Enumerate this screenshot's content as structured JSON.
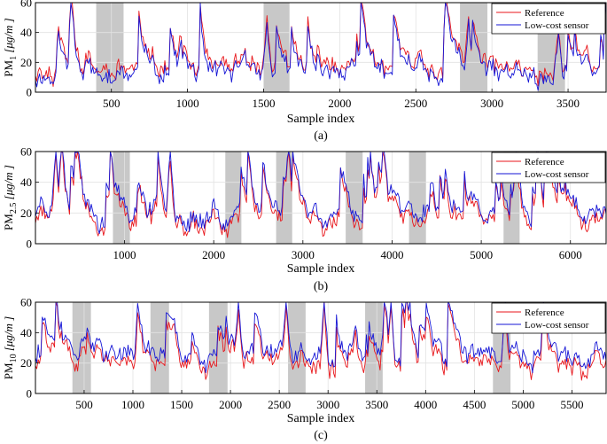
{
  "chart_data": [
    {
      "type": "line",
      "id": "a",
      "caption": "(a)",
      "xlabel": "Sample index",
      "ylabel_main": "PM",
      "ylabel_sub": "1",
      "ylabel_unit": " [μg/m  ]",
      "xlim": [
        1,
        3750
      ],
      "ylim": [
        0,
        60
      ],
      "xticks": [
        500,
        1000,
        1500,
        2000,
        2500,
        3000,
        3500
      ],
      "yticks": [
        0,
        20,
        40,
        60
      ],
      "shaded_ranges": [
        [
          400,
          580
        ],
        [
          1500,
          1670
        ],
        [
          2790,
          2970
        ],
        [
          3300,
          3480
        ]
      ],
      "legend": [
        "Reference",
        "Low-cost sensor"
      ],
      "legend_location": "top-right",
      "seed": 11,
      "base": 12,
      "peak_max": 45,
      "peaks": [
        [
          240,
          56
        ],
        [
          1520,
          47
        ],
        [
          2850,
          47
        ],
        [
          3440,
          38
        ]
      ],
      "series": [
        {
          "name": "Reference",
          "color": "#e8161b",
          "bias": 3
        },
        {
          "name": "Low-cost sensor",
          "color": "#1616d6",
          "bias": 0
        }
      ]
    },
    {
      "type": "line",
      "id": "b",
      "caption": "(b)",
      "xlabel": "Sample index",
      "ylabel_main": "PM",
      "ylabel_sub": "2.5",
      "ylabel_unit": " [μg/m  ]",
      "xlim": [
        1,
        6400
      ],
      "ylim": [
        0,
        60
      ],
      "xticks": [
        1000,
        2000,
        3000,
        4000,
        5000,
        6000
      ],
      "yticks": [
        0,
        20,
        40,
        60
      ],
      "shaded_ranges": [
        [
          870,
          1060
        ],
        [
          2130,
          2310
        ],
        [
          2700,
          2880
        ],
        [
          3480,
          3670
        ],
        [
          4190,
          4380
        ],
        [
          5250,
          5430
        ]
      ],
      "legend": [
        "Reference",
        "Low-cost sensor"
      ],
      "legend_location": "top-right",
      "seed": 23,
      "base": 18,
      "peak_max": 40,
      "peaks": [
        [
          230,
          60
        ],
        [
          1520,
          58
        ],
        [
          2830,
          52
        ],
        [
          5370,
          45
        ]
      ],
      "series": [
        {
          "name": "Reference",
          "color": "#e8161b",
          "bias": -2
        },
        {
          "name": "Low-cost sensor",
          "color": "#1616d6",
          "bias": 2
        }
      ]
    },
    {
      "type": "line",
      "id": "c",
      "caption": "(c)",
      "xlabel": "Sample index",
      "ylabel_main": "PM",
      "ylabel_sub": "10",
      "ylabel_unit": " [μg/m  ]",
      "xlim": [
        1,
        5850
      ],
      "ylim": [
        0,
        60
      ],
      "xticks": [
        500,
        1000,
        1500,
        2000,
        2500,
        3000,
        3500,
        4000,
        4500,
        5000,
        5500
      ],
      "yticks": [
        0,
        20,
        40,
        60
      ],
      "shaded_ranges": [
        [
          380,
          570
        ],
        [
          1180,
          1370
        ],
        [
          1780,
          1970
        ],
        [
          2590,
          2770
        ],
        [
          3380,
          3560
        ],
        [
          4690,
          4870
        ]
      ],
      "legend": [
        "Reference",
        "Low-cost sensor"
      ],
      "legend_location": "top-right",
      "seed": 37,
      "base": 20,
      "peak_max": 40,
      "peaks": [
        [
          220,
          60
        ],
        [
          2080,
          60
        ],
        [
          2570,
          60
        ],
        [
          2960,
          60
        ],
        [
          3640,
          60
        ],
        [
          4820,
          58
        ]
      ],
      "series": [
        {
          "name": "Reference",
          "color": "#e8161b",
          "bias": -2
        },
        {
          "name": "Low-cost sensor",
          "color": "#1616d6",
          "bias": 3
        }
      ]
    }
  ]
}
